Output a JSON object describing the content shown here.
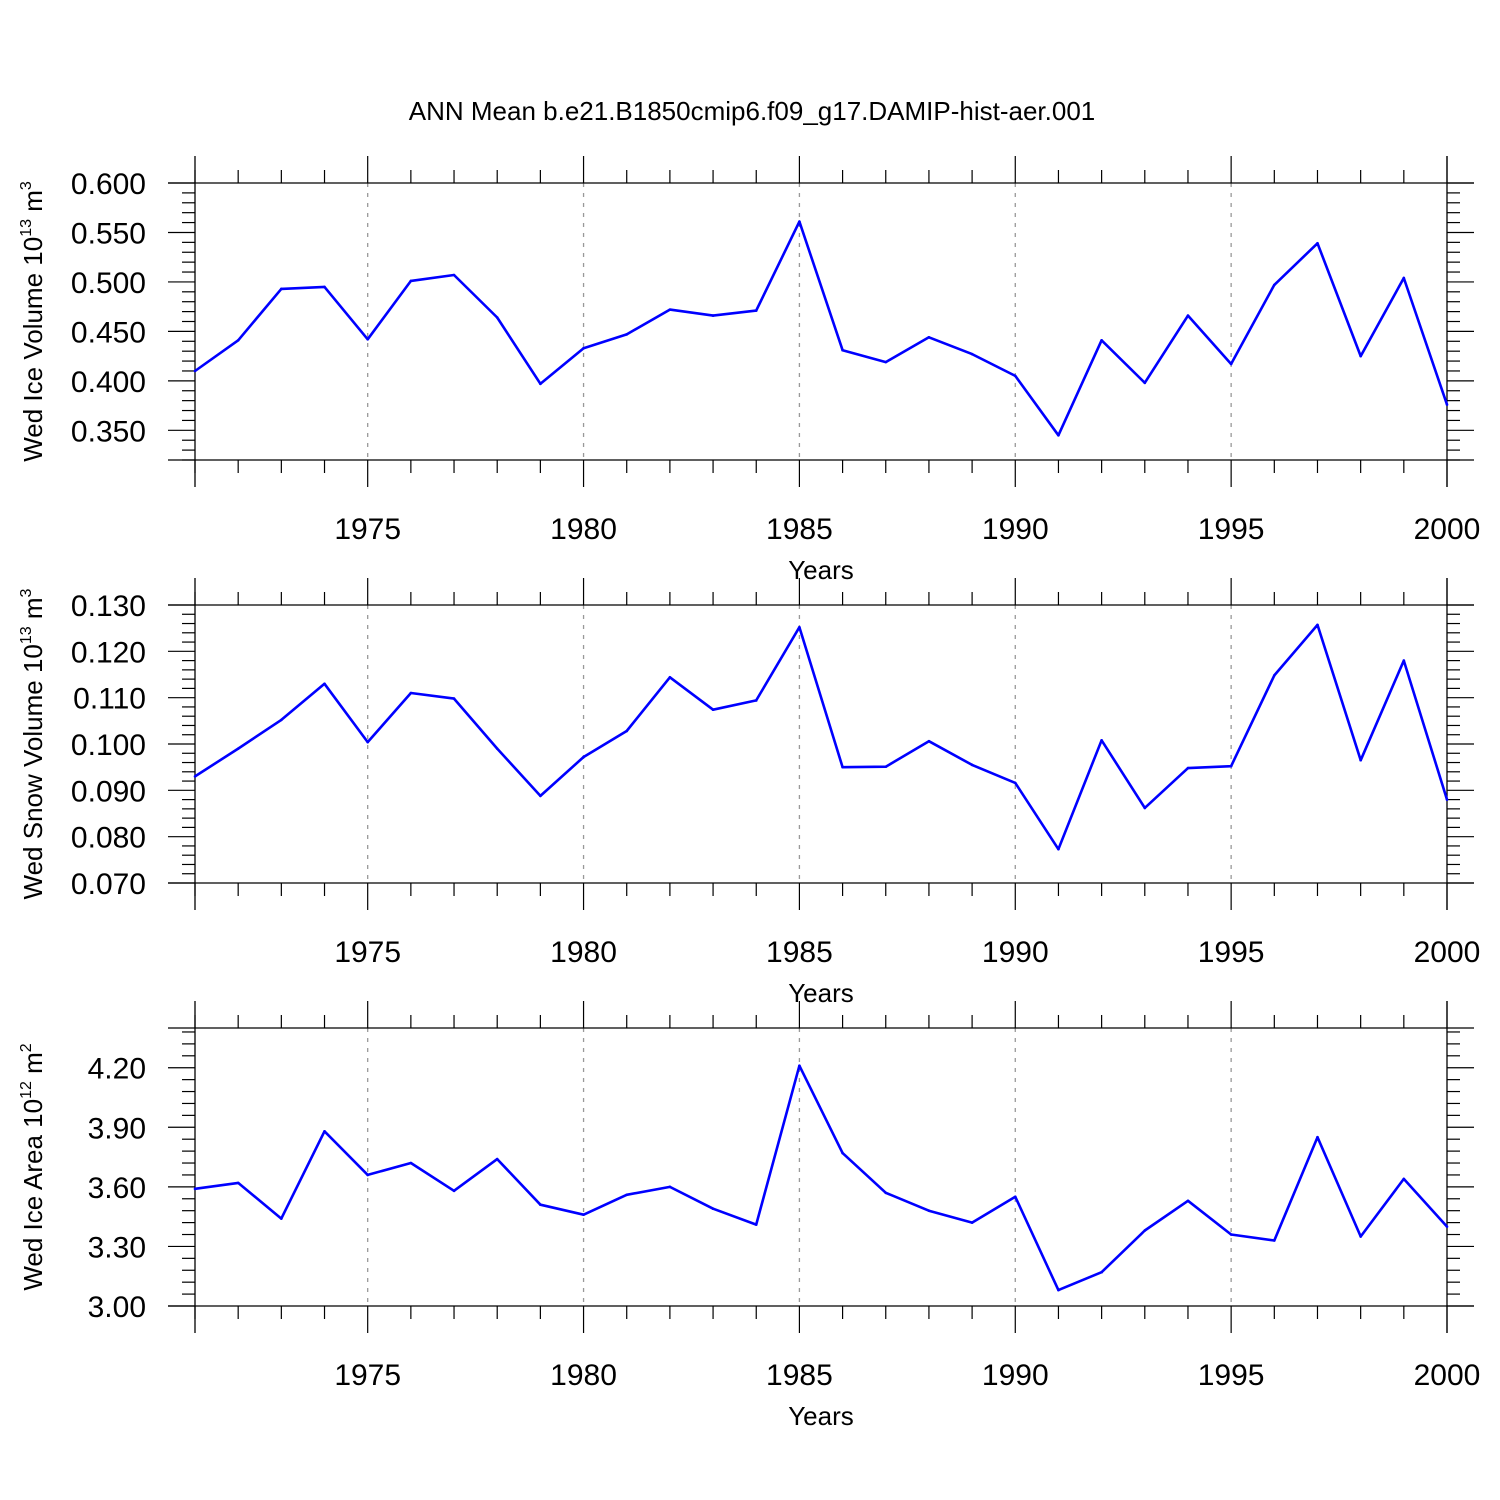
{
  "title": "ANN Mean b.e21.B1850cmip6.f09_g17.DAMIP-hist-aer.001",
  "colors": {
    "line": "#0000ff",
    "grid": "#999999"
  },
  "chart_data": [
    {
      "type": "line",
      "ylabel_main": "Wed Ice Volume 10",
      "ylabel_exp": "13",
      "ylabel_unit": " m",
      "ylabel_unit_exp": "3",
      "xlabel": "Years",
      "xlim": [
        1971,
        2000
      ],
      "ylim": [
        0.32,
        0.6
      ],
      "yticks": [
        "0.600",
        "0.550",
        "0.500",
        "0.450",
        "0.400",
        "0.350"
      ],
      "xticks": [
        "1975",
        "1980",
        "1985",
        "1990",
        "1995",
        "2000"
      ],
      "grid": "dashed vertical lines at labelled years",
      "x": [
        1971,
        1972,
        1973,
        1974,
        1975,
        1976,
        1977,
        1978,
        1979,
        1980,
        1981,
        1982,
        1983,
        1984,
        1985,
        1986,
        1987,
        1988,
        1989,
        1990,
        1991,
        1992,
        1993,
        1994,
        1995,
        1996,
        1997,
        1998,
        1999,
        2000
      ],
      "values": [
        0.41,
        0.441,
        0.493,
        0.495,
        0.442,
        0.501,
        0.507,
        0.464,
        0.397,
        0.433,
        0.447,
        0.472,
        0.466,
        0.471,
        0.561,
        0.431,
        0.419,
        0.444,
        0.427,
        0.405,
        0.345,
        0.441,
        0.398,
        0.466,
        0.417,
        0.497,
        0.539,
        0.425,
        0.504,
        0.376
      ]
    },
    {
      "type": "line",
      "ylabel_main": "Wed Snow Volume 10",
      "ylabel_exp": "13",
      "ylabel_unit": " m",
      "ylabel_unit_exp": "3",
      "xlabel": "Years",
      "xlim": [
        1971,
        2000
      ],
      "ylim": [
        0.07,
        0.13
      ],
      "yticks": [
        "0.130",
        "0.120",
        "0.110",
        "0.100",
        "0.090",
        "0.080",
        "0.070"
      ],
      "xticks": [
        "1975",
        "1980",
        "1985",
        "1990",
        "1995",
        "2000"
      ],
      "grid": "dashed vertical lines at labelled years",
      "x": [
        1971,
        1972,
        1973,
        1974,
        1975,
        1976,
        1977,
        1978,
        1979,
        1980,
        1981,
        1982,
        1983,
        1984,
        1985,
        1986,
        1987,
        1988,
        1989,
        1990,
        1991,
        1992,
        1993,
        1994,
        1995,
        1996,
        1997,
        1998,
        1999,
        2000
      ],
      "values": [
        0.093,
        0.099,
        0.1052,
        0.113,
        0.1004,
        0.111,
        0.1098,
        0.099,
        0.0888,
        0.0972,
        0.1028,
        0.1144,
        0.1074,
        0.1094,
        0.1252,
        0.095,
        0.0951,
        0.1006,
        0.0955,
        0.0916,
        0.0773,
        0.1008,
        0.0862,
        0.0948,
        0.0952,
        0.1148,
        0.1257,
        0.0965,
        0.118,
        0.088
      ]
    },
    {
      "type": "line",
      "ylabel_main": "Wed Ice Area 10",
      "ylabel_exp": "12",
      "ylabel_unit": " m",
      "ylabel_unit_exp": "2",
      "xlabel": "Years",
      "xlim": [
        1971,
        2000
      ],
      "ylim": [
        3.0,
        4.4
      ],
      "yticks": [
        "4.20",
        "3.90",
        "3.60",
        "3.30",
        "3.00"
      ],
      "xticks": [
        "1975",
        "1980",
        "1985",
        "1990",
        "1995",
        "2000"
      ],
      "grid": "dashed vertical lines at labelled years",
      "x": [
        1971,
        1972,
        1973,
        1974,
        1975,
        1976,
        1977,
        1978,
        1979,
        1980,
        1981,
        1982,
        1983,
        1984,
        1985,
        1986,
        1987,
        1988,
        1989,
        1990,
        1991,
        1992,
        1993,
        1994,
        1995,
        1996,
        1997,
        1998,
        1999,
        2000
      ],
      "values": [
        3.59,
        3.62,
        3.44,
        3.88,
        3.66,
        3.72,
        3.58,
        3.74,
        3.51,
        3.46,
        3.56,
        3.6,
        3.49,
        3.41,
        4.21,
        3.77,
        3.57,
        3.48,
        3.42,
        3.55,
        3.08,
        3.17,
        3.38,
        3.53,
        3.36,
        3.33,
        3.85,
        3.35,
        3.64,
        3.4
      ]
    }
  ]
}
